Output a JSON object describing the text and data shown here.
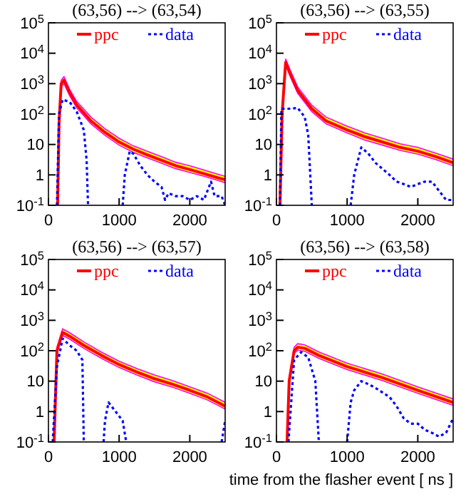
{
  "chart_data": [
    {
      "type": "line",
      "title": "(63,56) --> (63,54)",
      "log": "y",
      "xlim": [
        0,
        2500
      ],
      "xticks": [
        0,
        1000,
        2000
      ],
      "ylim": [
        0.1,
        100000
      ],
      "yticks": [
        {
          "value": 0.1,
          "label": "10$^{-1}$"
        },
        {
          "value": 1,
          "label": "1"
        },
        {
          "value": 10,
          "label": "10"
        },
        {
          "value": 100,
          "label": "10$^{2}$"
        },
        {
          "value": 1000,
          "label": "10$^{3}$"
        },
        {
          "value": 10000,
          "label": "10$^{4}$"
        },
        {
          "value": 100000,
          "label": "10$^{5}$"
        }
      ],
      "legend": "top",
      "grid": false,
      "series": [
        {
          "name": "ppc",
          "color": "#ff0000",
          "line_style": "solid",
          "x": [
            130,
            150,
            180,
            220,
            300,
            400,
            600,
            800,
            1000,
            1200,
            1400,
            1600,
            1800,
            2000,
            2200,
            2400,
            2500
          ],
          "values": [
            0.1,
            50,
            1000,
            1300,
            500,
            200,
            60,
            25,
            12,
            7,
            4.5,
            3,
            2,
            1.5,
            1.1,
            0.8,
            0.7
          ],
          "lower": [
            0.1,
            40,
            800,
            1000,
            400,
            160,
            48,
            20,
            9.5,
            5.5,
            3.6,
            2.4,
            1.6,
            1.2,
            0.9,
            0.65,
            0.55
          ],
          "upper": [
            0.13,
            65,
            1300,
            1700,
            650,
            260,
            80,
            33,
            16,
            9,
            6,
            4,
            2.6,
            2,
            1.45,
            1.05,
            0.9
          ]
        },
        {
          "name": "data",
          "color": "#0000ff",
          "line_style": "dotted",
          "x": [
            120,
            150,
            200,
            300,
            400,
            500,
            540,
            560,
            800,
            1050,
            1080,
            1150,
            1200,
            1300,
            1400,
            1500,
            1600,
            1650,
            1700,
            1800,
            1900,
            2000,
            2100,
            2200,
            2300,
            2350,
            2450,
            2500
          ],
          "values": [
            0.1,
            100,
            300,
            250,
            120,
            30,
            3,
            0.1,
            null,
            0.1,
            1,
            6,
            5,
            2,
            1,
            0.6,
            0.4,
            0.15,
            0.25,
            0.2,
            0.2,
            0.15,
            0.2,
            0.15,
            0.6,
            0.2,
            0.2,
            0.1
          ]
        }
      ]
    },
    {
      "type": "line",
      "title": "(63,56) --> (63,55)",
      "log": "y",
      "xlim": [
        0,
        2500
      ],
      "xticks": [
        0,
        1000,
        2000
      ],
      "ylim": [
        0.1,
        100000
      ],
      "yticks": [
        {
          "value": 0.1,
          "label": "10$^{-1}$"
        },
        {
          "value": 1,
          "label": "1"
        },
        {
          "value": 10,
          "label": "10"
        },
        {
          "value": 100,
          "label": "10$^{2}$"
        },
        {
          "value": 1000,
          "label": "10$^{3}$"
        },
        {
          "value": 10000,
          "label": "10$^{4}$"
        },
        {
          "value": 100000,
          "label": "10$^{5}$"
        }
      ],
      "legend": "top",
      "grid": false,
      "series": [
        {
          "name": "ppc",
          "color": "#ff0000",
          "line_style": "solid",
          "x": [
            50,
            80,
            130,
            200,
            300,
            500,
            700,
            1000,
            1250,
            1500,
            1750,
            2000,
            2250,
            2500
          ],
          "values": [
            0.1,
            100,
            5000,
            2000,
            600,
            150,
            60,
            30,
            18,
            12,
            8,
            6,
            4,
            2.5
          ],
          "lower": [
            0.1,
            80,
            4000,
            1600,
            480,
            120,
            48,
            24,
            14,
            9.5,
            6.4,
            4.8,
            3.2,
            2
          ],
          "upper": [
            0.13,
            130,
            6500,
            2600,
            780,
            195,
            80,
            40,
            24,
            16,
            10.5,
            8,
            5.2,
            3.3
          ]
        },
        {
          "name": "data",
          "color": "#0000ff",
          "line_style": "dotted",
          "x": [
            50,
            70,
            200,
            300,
            400,
            450,
            500,
            800,
            1050,
            1100,
            1200,
            1300,
            1400,
            1600,
            1700,
            1800,
            1900,
            2000,
            2100,
            2200,
            2300,
            2400,
            2500
          ],
          "values": [
            0.1,
            150,
            150,
            160,
            80,
            20,
            0.1,
            null,
            0.1,
            1,
            8,
            5,
            2.5,
            1,
            0.6,
            0.5,
            0.4,
            0.5,
            0.6,
            0.6,
            0.3,
            0.15,
            0.15
          ]
        }
      ]
    },
    {
      "type": "line",
      "title": "(63,56) --> (63,57)",
      "log": "y",
      "xlim": [
        0,
        2500
      ],
      "xticks": [
        0,
        1000,
        2000
      ],
      "ylim": [
        0.1,
        100000
      ],
      "yticks": [
        {
          "value": 0.1,
          "label": "10$^{-1}$"
        },
        {
          "value": 1,
          "label": "1"
        },
        {
          "value": 10,
          "label": "10"
        },
        {
          "value": 100,
          "label": "10$^{2}$"
        },
        {
          "value": 1000,
          "label": "10$^{3}$"
        },
        {
          "value": 10000,
          "label": "10$^{4}$"
        },
        {
          "value": 100000,
          "label": "10$^{5}$"
        }
      ],
      "legend": "top",
      "grid": false,
      "series": [
        {
          "name": "ppc",
          "color": "#ff0000",
          "line_style": "solid",
          "x": [
            80,
            120,
            200,
            300,
            500,
            750,
            1000,
            1250,
            1500,
            1750,
            2000,
            2250,
            2500
          ],
          "values": [
            0.1,
            100,
            400,
            300,
            150,
            70,
            35,
            20,
            12,
            8,
            5,
            3,
            1.5
          ],
          "lower": [
            0.1,
            80,
            320,
            240,
            120,
            56,
            28,
            16,
            9.5,
            6.4,
            4,
            2.4,
            1.2
          ],
          "upper": [
            0.13,
            130,
            520,
            390,
            195,
            90,
            45,
            26,
            16,
            10.5,
            6.5,
            4,
            2
          ]
        },
        {
          "name": "data",
          "color": "#0000ff",
          "line_style": "dotted",
          "x": [
            60,
            120,
            200,
            300,
            400,
            480,
            500,
            650,
            780,
            800,
            850,
            950,
            1050,
            1100,
            1800,
            2450,
            2500
          ],
          "values": [
            0.1,
            30,
            250,
            150,
            100,
            50,
            0.1,
            null,
            0.1,
            0.5,
            2,
            1,
            0.5,
            0.1,
            null,
            0.1,
            0.5
          ]
        }
      ]
    },
    {
      "type": "line",
      "title": "(63,56) --> (63,58)",
      "xlabel": "time from the flasher event [ ns ]",
      "log": "y",
      "xlim": [
        0,
        2500
      ],
      "xticks": [
        0,
        1000,
        2000
      ],
      "ylim": [
        0.1,
        100000
      ],
      "yticks": [
        {
          "value": 0.1,
          "label": "10$^{-1}$"
        },
        {
          "value": 1,
          "label": "1"
        },
        {
          "value": 10,
          "label": "10"
        },
        {
          "value": 100,
          "label": "10$^{2}$"
        },
        {
          "value": 1000,
          "label": "10$^{3}$"
        },
        {
          "value": 10000,
          "label": "10$^{4}$"
        },
        {
          "value": 100000,
          "label": "10$^{5}$"
        }
      ],
      "legend": "top",
      "grid": false,
      "series": [
        {
          "name": "ppc",
          "color": "#ff0000",
          "line_style": "solid",
          "x": [
            150,
            180,
            250,
            300,
            400,
            600,
            1000,
            1500,
            2000,
            2500
          ],
          "values": [
            0.1,
            10,
            100,
            130,
            120,
            70,
            30,
            13,
            5,
            2
          ],
          "lower": [
            0.1,
            8,
            80,
            104,
            96,
            56,
            24,
            10.4,
            4,
            1.6
          ],
          "upper": [
            0.13,
            13,
            130,
            170,
            156,
            91,
            39,
            17,
            6.5,
            2.6
          ]
        },
        {
          "name": "data",
          "color": "#0000ff",
          "line_style": "dotted",
          "x": [
            170,
            250,
            350,
            450,
            550,
            600,
            800,
            1000,
            1050,
            1100,
            1200,
            1300,
            1400,
            1600,
            1700,
            1800,
            1900,
            2000,
            2100,
            2200,
            2300,
            2400,
            2500
          ],
          "values": [
            0.1,
            50,
            90,
            60,
            10,
            0.1,
            null,
            0.1,
            2,
            5,
            10,
            8,
            6,
            3,
            1.5,
            0.6,
            0.4,
            0.4,
            0.25,
            0.2,
            0.15,
            0.2,
            0.6
          ]
        }
      ]
    }
  ]
}
